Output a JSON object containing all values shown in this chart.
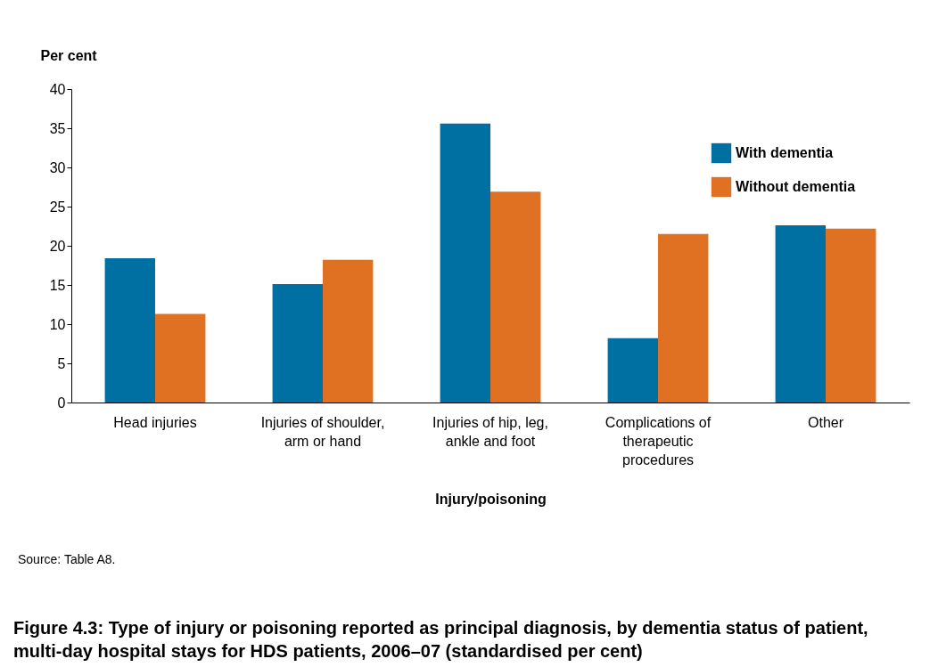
{
  "chart_data": {
    "type": "bar",
    "title": "Figure 4.3: Type of injury or poisoning reported as principal diagnosis, by dementia status of patient,\nmulti-day hospital stays for HDS patients, 2006–07 (standardised per cent)",
    "xlabel": "Injury/poisoning",
    "ylabel": "Per cent",
    "annotations": [
      "Source: Table A8."
    ],
    "categories": [
      "Head injuries",
      "Injuries of shoulder,\narm or hand",
      "Injuries of hip, leg,\nankle and foot",
      "Complications of\ntherapeutic\nprocedures",
      "Other"
    ],
    "series": [
      {
        "name": "With dementia",
        "color": "#0070a3",
        "values": [
          18.4,
          15.1,
          35.6,
          8.2,
          22.6
        ]
      },
      {
        "name": "Without dementia",
        "color": "#e07022",
        "values": [
          11.3,
          18.2,
          26.9,
          21.5,
          22.2
        ]
      }
    ],
    "ylim": [
      0,
      40
    ],
    "yticks": [
      0,
      5,
      10,
      15,
      20,
      25,
      30,
      35,
      40
    ],
    "grid": false,
    "legend": "top right"
  }
}
